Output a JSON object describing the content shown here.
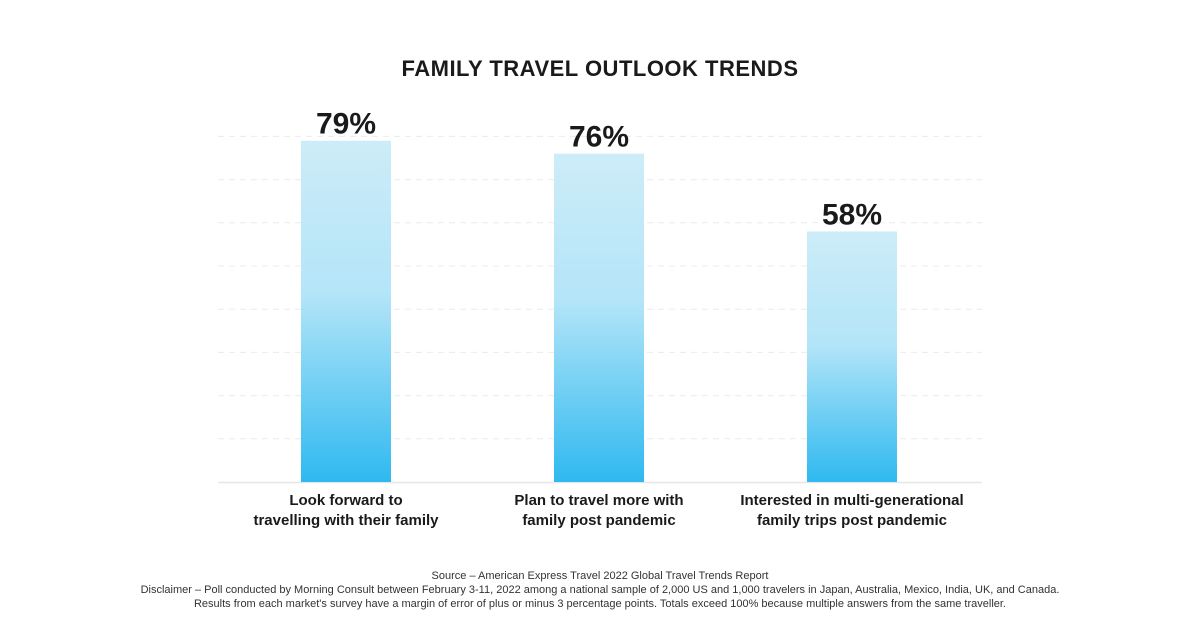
{
  "chart_data": {
    "type": "bar",
    "title": "FAMILY TRAVEL OUTLOOK TRENDS",
    "categories": [
      [
        "Look forward to",
        "travelling with their family"
      ],
      [
        "Plan to travel more with",
        "family post pandemic"
      ],
      [
        "Interested in multi-generational",
        "family trips post pandemic"
      ]
    ],
    "values": [
      79,
      76,
      58
    ],
    "data_labels": [
      "79%",
      "76%",
      "58%"
    ],
    "xlabel": "",
    "ylabel": "",
    "ylim": [
      0,
      80
    ],
    "grid": true,
    "bar_color_top": "#cdecf8",
    "bar_color_bottom": "#2fb9f0"
  },
  "footer": {
    "source": "Source – American Express Travel 2022 Global Travel Trends Report",
    "disclaimer": "Disclaimer – Poll conducted by Morning Consult between February 3-11, 2022 among a national sample of 2,000 US and 1,000 travelers in Japan, Australia, Mexico, India, UK, and Canada.",
    "note": "Results from each market's survey have a margin of error of plus or minus 3 percentage points. Totals exceed 100% because multiple answers from the same traveller."
  }
}
